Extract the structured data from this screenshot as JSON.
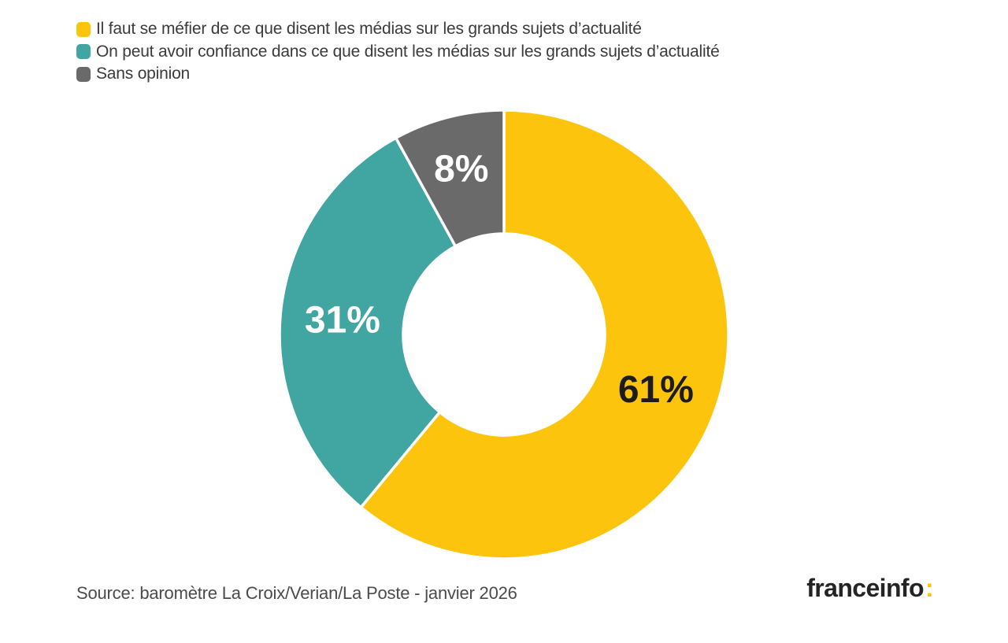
{
  "legend": {
    "items": [
      {
        "label": "Il faut se méfier de ce que disent les médias sur les grands sujets d’actualité",
        "color": "#FCC40C"
      },
      {
        "label": "On peut avoir confiance dans ce que disent les médias sur les grands sujets d’actualité",
        "color": "#41A6A1"
      },
      {
        "label": "Sans opinion",
        "color": "#6A6A6A"
      }
    ]
  },
  "chart_data": {
    "type": "pie",
    "subtype": "donut",
    "categories": [
      "Il faut se méfier de ce que disent les médias sur les grands sujets d’actualité",
      "On peut avoir confiance dans ce que disent les médias sur les grands sujets d’actualité",
      "Sans opinion"
    ],
    "values": [
      61,
      31,
      8
    ],
    "unit": "%",
    "value_labels": [
      "61%",
      "31%",
      "8%"
    ],
    "colors": [
      "#FCC40C",
      "#41A6A1",
      "#6A6A6A"
    ],
    "value_label_colors": [
      "#1c1c1c",
      "#ffffff",
      "#ffffff"
    ],
    "start_angle_deg": 0,
    "direction": "clockwise",
    "inner_radius_ratio": 0.45,
    "separator_color": "#FFFFFF",
    "legend_position": "top-left"
  },
  "source": {
    "text": "Source: baromètre La Croix/Verian/La Poste - janvier 2026"
  },
  "logo": {
    "text": "franceinfo",
    "colon": ":",
    "text_color": "#242424",
    "colon_color": "#FCC40C"
  }
}
